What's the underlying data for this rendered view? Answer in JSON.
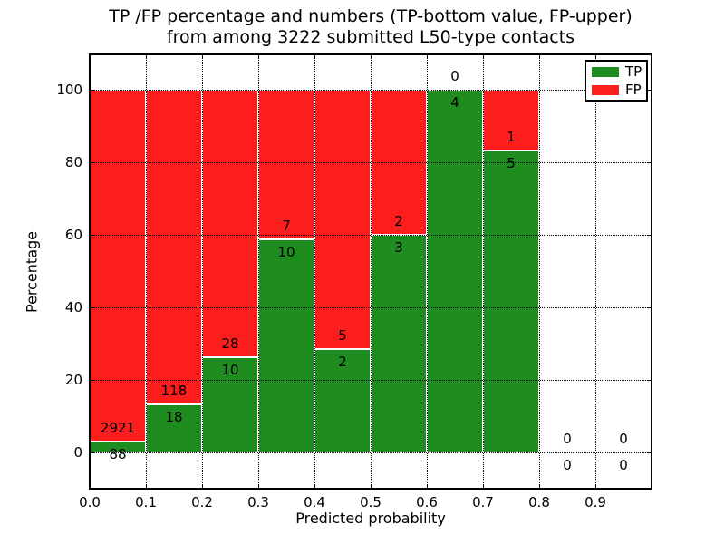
{
  "figure": {
    "title_line1": "TP /FP percentage and numbers (TP-bottom value, FP-upper)",
    "title_line2": "from among 3222 submitted L50-type contacts"
  },
  "chart_data": {
    "type": "bar",
    "stacked": true,
    "title": "TP /FP percentage and numbers (TP-bottom value, FP-upper)\nfrom among 3222 submitted L50-type contacts",
    "title_lines": [
      "TP /FP percentage and numbers (TP-bottom value, FP-upper)",
      "from among 3222 submitted L50-type contacts"
    ],
    "xlabel": "Predicted probability",
    "ylabel": "Percentage",
    "total_submitted_contacts": 3222,
    "bin_edges": [
      0.0,
      0.1,
      0.2,
      0.3,
      0.4,
      0.5,
      0.6,
      0.7,
      0.8,
      0.9,
      1.0
    ],
    "xtick_labels": [
      "0.0",
      "0.1",
      "0.2",
      "0.3",
      "0.4",
      "0.5",
      "0.6",
      "0.7",
      "0.8",
      "0.9"
    ],
    "ytick_values": [
      0,
      20,
      40,
      60,
      80,
      100
    ],
    "xlim": [
      0.0,
      1.0
    ],
    "ylim": [
      -10,
      110
    ],
    "grid": "dotted",
    "legend_position": "upper-right",
    "series": [
      {
        "name": "TP",
        "color": "#1e8c1e",
        "counts": [
          88,
          18,
          10,
          10,
          2,
          3,
          4,
          5,
          0,
          0
        ],
        "percent": [
          2.92,
          13.24,
          26.32,
          58.82,
          28.57,
          60.0,
          100.0,
          83.33,
          0.0,
          0.0
        ]
      },
      {
        "name": "FP",
        "color": "#fc1d1d",
        "counts": [
          2921,
          118,
          28,
          7,
          5,
          2,
          0,
          1,
          0,
          0
        ],
        "percent": [
          97.08,
          86.76,
          73.68,
          41.18,
          71.43,
          40.0,
          0.0,
          16.67,
          0.0,
          0.0
        ]
      }
    ]
  }
}
